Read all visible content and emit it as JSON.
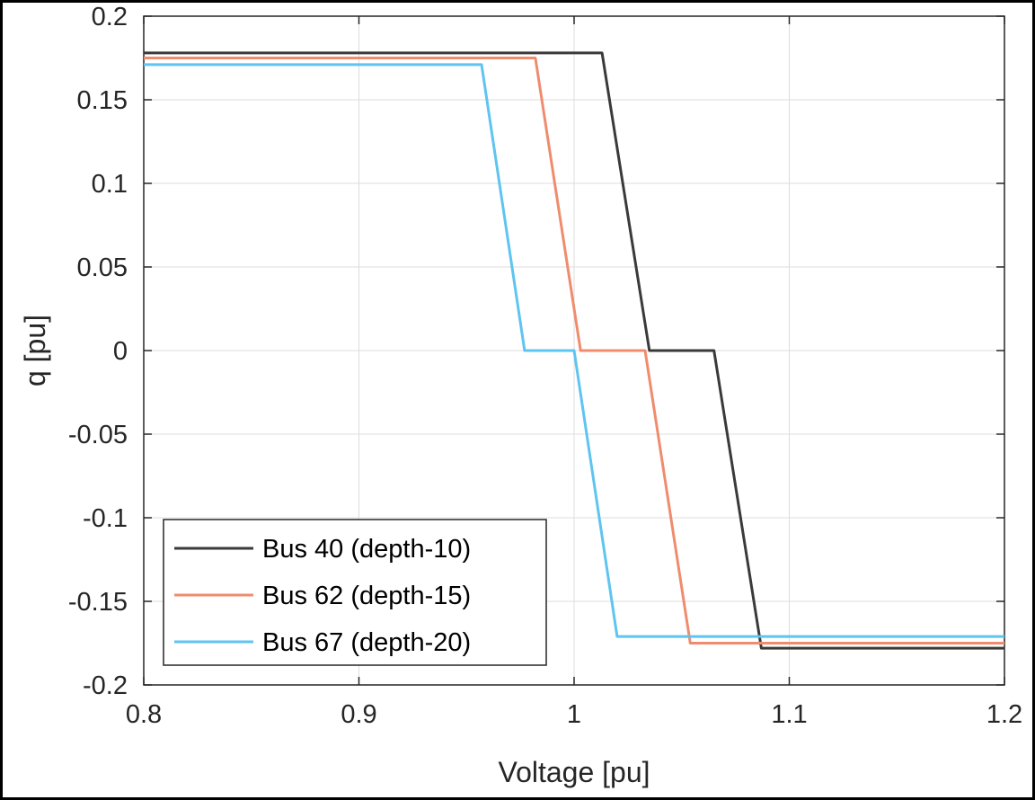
{
  "chart_data": {
    "type": "line",
    "xlabel": "Voltage [pu]",
    "ylabel": "q [pu]",
    "xlim": [
      0.8,
      1.2
    ],
    "ylim": [
      -0.2,
      0.2
    ],
    "x_ticks": [
      0.8,
      0.9,
      1.0,
      1.1,
      1.2
    ],
    "x_tick_labels": [
      "0.8",
      "0.9",
      "1",
      "1.1",
      "1.2"
    ],
    "y_ticks": [
      -0.2,
      -0.15,
      -0.1,
      -0.05,
      0,
      0.05,
      0.1,
      0.15,
      0.2
    ],
    "y_tick_labels": [
      "-0.2",
      "-0.15",
      "-0.1",
      "-0.05",
      "0",
      "0.05",
      "0.1",
      "0.15",
      "0.2"
    ],
    "grid": true,
    "legend_position": "bottom-left",
    "series": [
      {
        "name": "Bus 40 (depth-10)",
        "color": "#3a3a3a",
        "x": [
          0.8,
          1.013,
          1.035,
          1.065,
          1.087,
          1.2
        ],
        "y": [
          0.178,
          0.178,
          0.0,
          0.0,
          -0.178,
          -0.178
        ]
      },
      {
        "name": "Bus 62 (depth-15)",
        "color": "#f08c6e",
        "x": [
          0.8,
          0.982,
          1.003,
          1.033,
          1.054,
          1.2
        ],
        "y": [
          0.175,
          0.175,
          0.0,
          0.0,
          -0.175,
          -0.175
        ]
      },
      {
        "name": "Bus 67 (depth-20)",
        "color": "#5ec4f0",
        "x": [
          0.8,
          0.957,
          0.977,
          1.0,
          1.02,
          1.2
        ],
        "y": [
          0.171,
          0.171,
          0.0,
          0.0,
          -0.171,
          -0.171
        ]
      }
    ]
  }
}
